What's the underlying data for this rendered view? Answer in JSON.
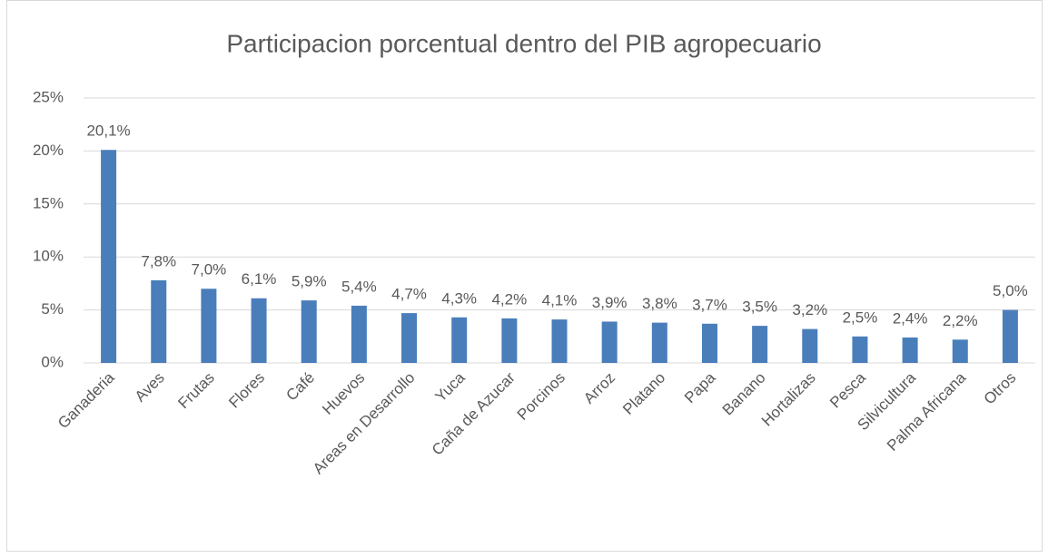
{
  "chart_data": {
    "type": "bar",
    "title": "Participacion porcentual dentro del PIB agropecuario",
    "categories": [
      "Ganaderia",
      "Aves",
      "Frutas",
      "Flores",
      "Café",
      "Huevos",
      "Areas en Desarrollo",
      "Yuca",
      "Caña de Azucar",
      "Porcinos",
      "Arroz",
      "Platano",
      "Papa",
      "Banano",
      "Hortalizas",
      "Pesca",
      "Silvicultura",
      "Palma Africana",
      "Otros"
    ],
    "values": [
      20.1,
      7.8,
      7.0,
      6.1,
      5.9,
      5.4,
      4.7,
      4.3,
      4.2,
      4.1,
      3.9,
      3.8,
      3.7,
      3.5,
      3.2,
      2.5,
      2.4,
      2.2,
      5.0
    ],
    "value_labels": [
      "20,1%",
      "7,8%",
      "7,0%",
      "6,1%",
      "5,9%",
      "5,4%",
      "4,7%",
      "4,3%",
      "4,2%",
      "4,1%",
      "3,9%",
      "3,8%",
      "3,7%",
      "3,5%",
      "3,2%",
      "2,5%",
      "2,4%",
      "2,2%",
      "5,0%"
    ],
    "color": "#4a7ebb",
    "ylim": [
      0,
      25
    ],
    "yticks": [
      {
        "value": 0,
        "label": "0%"
      },
      {
        "value": 5,
        "label": "5%"
      },
      {
        "value": 10,
        "label": "10%"
      },
      {
        "value": 15,
        "label": "15%"
      },
      {
        "value": 20,
        "label": "20%"
      },
      {
        "value": 25,
        "label": "25%"
      }
    ],
    "grid": true
  }
}
